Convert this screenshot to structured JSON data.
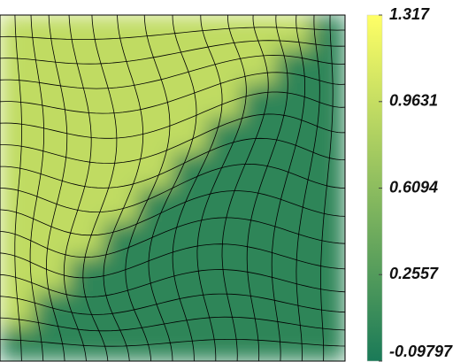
{
  "chart_data": {
    "type": "heatmap",
    "z": [
      [
        0.93,
        0.93,
        0.93,
        0.93,
        0.93,
        0.93,
        0.93,
        0.93,
        0.93,
        0.02
      ],
      [
        0.93,
        0.93,
        0.93,
        0.93,
        0.93,
        0.93,
        0.93,
        0.93,
        0.02,
        0.02
      ],
      [
        0.93,
        0.93,
        0.93,
        0.93,
        0.93,
        0.93,
        0.93,
        0.02,
        0.02,
        0.02
      ],
      [
        0.93,
        0.93,
        0.93,
        0.93,
        0.93,
        0.93,
        0.02,
        0.02,
        0.02,
        0.02
      ],
      [
        0.93,
        0.93,
        0.93,
        0.93,
        0.93,
        0.02,
        0.02,
        0.02,
        0.02,
        0.02
      ],
      [
        0.93,
        0.93,
        0.93,
        0.93,
        0.02,
        0.02,
        0.02,
        0.02,
        0.02,
        0.02
      ],
      [
        0.93,
        0.93,
        0.93,
        0.02,
        0.02,
        0.02,
        0.02,
        0.02,
        0.02,
        0.02
      ],
      [
        0.93,
        0.93,
        0.02,
        0.02,
        0.02,
        0.02,
        0.02,
        0.02,
        0.02,
        0.02
      ],
      [
        0.93,
        0.02,
        0.02,
        0.02,
        0.02,
        0.02,
        0.02,
        0.02,
        0.02,
        0.02
      ],
      [
        0.02,
        0.02,
        0.02,
        0.02,
        0.02,
        0.02,
        0.02,
        0.02,
        0.02,
        0.02
      ]
    ],
    "colormap": [
      "#1a7a58",
      "#ffff66"
    ],
    "clim": [
      -0.09797,
      1.317
    ],
    "cticks": [
      -0.09797,
      0.2557,
      0.6094,
      0.9631,
      1.317
    ]
  }
}
